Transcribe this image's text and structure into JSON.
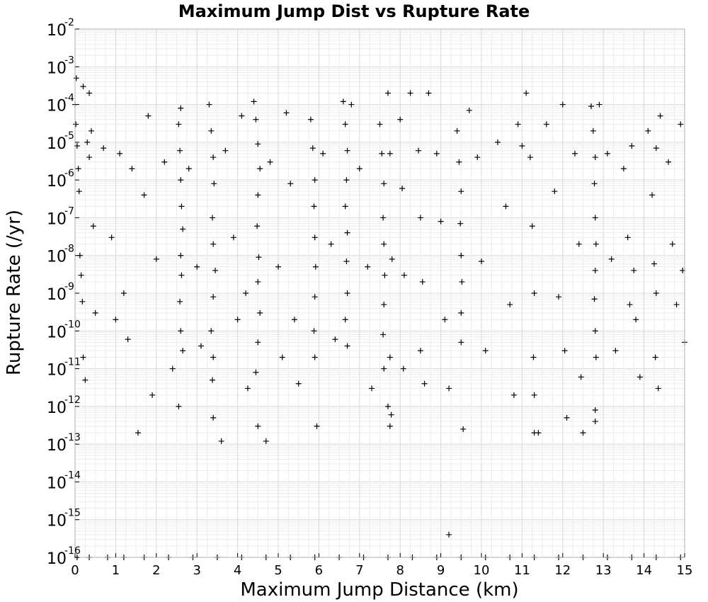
{
  "chart_data": {
    "type": "scatter",
    "title": "Maximum Jump Dist vs Rupture Rate",
    "xlabel": "Maximum Jump Distance (km)",
    "ylabel": "Rupture Rate (/yr)",
    "xlim": [
      0,
      15
    ],
    "ylim": [
      1e-16,
      0.01
    ],
    "yscale": "log",
    "grid": true,
    "marker": "plus",
    "x_ticks": [
      "0",
      "1",
      "2",
      "3",
      "4",
      "5",
      "6",
      "7",
      "8",
      "9",
      "10",
      "11",
      "12",
      "13",
      "14",
      "15"
    ],
    "y_ticks": [
      {
        "base": "10",
        "exp": "-16"
      },
      {
        "base": "10",
        "exp": "-15"
      },
      {
        "base": "10",
        "exp": "-14"
      },
      {
        "base": "10",
        "exp": "-13"
      },
      {
        "base": "10",
        "exp": "-12"
      },
      {
        "base": "10",
        "exp": "-11"
      },
      {
        "base": "10",
        "exp": "-10"
      },
      {
        "base": "10",
        "exp": "-9"
      },
      {
        "base": "10",
        "exp": "-8"
      },
      {
        "base": "10",
        "exp": "-7"
      },
      {
        "base": "10",
        "exp": "-6"
      },
      {
        "base": "10",
        "exp": "-5"
      },
      {
        "base": "10",
        "exp": "-4"
      },
      {
        "base": "10",
        "exp": "-3"
      },
      {
        "base": "10",
        "exp": "-2"
      }
    ],
    "series": [
      {
        "points": [
          [
            0.0,
            0.0001
          ],
          [
            0.02,
            3e-05
          ],
          [
            0.05,
            8e-06
          ],
          [
            0.08,
            2e-06
          ],
          [
            0.1,
            5e-07
          ],
          [
            0.12,
            1e-08
          ],
          [
            0.15,
            3e-09
          ],
          [
            0.18,
            6e-10
          ],
          [
            0.2,
            2e-11
          ],
          [
            0.25,
            5e-12
          ],
          [
            0.3,
            1e-05
          ],
          [
            0.35,
            4e-06
          ],
          [
            0.4,
            2e-05
          ],
          [
            0.45,
            6e-08
          ],
          [
            0.5,
            3e-10
          ],
          [
            0.03,
            0.0005
          ],
          [
            0.2,
            0.0003
          ],
          [
            0.35,
            0.0002
          ],
          [
            0.7,
            7e-06
          ],
          [
            0.9,
            3e-08
          ],
          [
            1.0,
            2e-10
          ],
          [
            1.1,
            5e-06
          ],
          [
            1.2,
            1e-09
          ],
          [
            1.3,
            6e-11
          ],
          [
            1.4,
            2e-06
          ],
          [
            1.55,
            2e-13
          ],
          [
            1.7,
            4e-07
          ],
          [
            1.8,
            5e-05
          ],
          [
            1.9,
            2e-12
          ],
          [
            2.0,
            8e-09
          ],
          [
            2.2,
            3e-06
          ],
          [
            2.4,
            1e-11
          ],
          [
            2.55,
            3e-05
          ],
          [
            2.58,
            6e-06
          ],
          [
            2.6,
            1e-06
          ],
          [
            2.62,
            2e-07
          ],
          [
            2.65,
            5e-08
          ],
          [
            2.6,
            1e-08
          ],
          [
            2.62,
            3e-09
          ],
          [
            2.58,
            6e-10
          ],
          [
            2.6,
            1e-10
          ],
          [
            2.65,
            3e-11
          ],
          [
            2.55,
            1e-12
          ],
          [
            2.6,
            8e-05
          ],
          [
            2.8,
            2e-06
          ],
          [
            3.0,
            5e-09
          ],
          [
            3.1,
            4e-11
          ],
          [
            3.3,
            0.0001
          ],
          [
            3.35,
            2e-05
          ],
          [
            3.4,
            4e-06
          ],
          [
            3.42,
            8e-07
          ],
          [
            3.38,
            1e-07
          ],
          [
            3.4,
            2e-08
          ],
          [
            3.45,
            4e-09
          ],
          [
            3.4,
            8e-10
          ],
          [
            3.35,
            1e-10
          ],
          [
            3.4,
            2e-11
          ],
          [
            3.38,
            5e-12
          ],
          [
            3.4,
            5e-13
          ],
          [
            3.6,
            1.2e-13
          ],
          [
            3.7,
            6e-06
          ],
          [
            3.9,
            3e-08
          ],
          [
            4.0,
            2e-10
          ],
          [
            4.1,
            5e-05
          ],
          [
            4.2,
            1e-09
          ],
          [
            4.25,
            3e-12
          ],
          [
            4.4,
            0.00012
          ],
          [
            4.45,
            4e-05
          ],
          [
            4.5,
            9e-06
          ],
          [
            4.55,
            2e-06
          ],
          [
            4.5,
            4e-07
          ],
          [
            4.48,
            6e-08
          ],
          [
            4.52,
            9e-09
          ],
          [
            4.5,
            2e-09
          ],
          [
            4.55,
            3e-10
          ],
          [
            4.5,
            5e-11
          ],
          [
            4.45,
            8e-12
          ],
          [
            4.5,
            3e-13
          ],
          [
            4.7,
            1.2e-13
          ],
          [
            4.8,
            3e-06
          ],
          [
            5.0,
            5e-09
          ],
          [
            5.1,
            2e-11
          ],
          [
            5.2,
            6e-05
          ],
          [
            5.3,
            8e-07
          ],
          [
            5.4,
            2e-10
          ],
          [
            5.5,
            4e-12
          ],
          [
            5.8,
            4e-05
          ],
          [
            5.85,
            7e-06
          ],
          [
            5.9,
            1e-06
          ],
          [
            5.88,
            2e-07
          ],
          [
            5.9,
            3e-08
          ],
          [
            5.92,
            5e-09
          ],
          [
            5.9,
            8e-10
          ],
          [
            5.88,
            1e-10
          ],
          [
            5.9,
            2e-11
          ],
          [
            5.95,
            3e-13
          ],
          [
            6.1,
            5e-06
          ],
          [
            6.3,
            2e-08
          ],
          [
            6.4,
            6e-11
          ],
          [
            6.6,
            0.00012
          ],
          [
            6.65,
            3e-05
          ],
          [
            6.7,
            6e-06
          ],
          [
            6.68,
            1e-06
          ],
          [
            6.65,
            2e-07
          ],
          [
            6.7,
            4e-08
          ],
          [
            6.68,
            7e-09
          ],
          [
            6.7,
            1e-09
          ],
          [
            6.65,
            2e-10
          ],
          [
            6.7,
            4e-11
          ],
          [
            6.8,
            0.0001
          ],
          [
            7.0,
            2e-06
          ],
          [
            7.2,
            5e-09
          ],
          [
            7.3,
            3e-12
          ],
          [
            7.5,
            3e-05
          ],
          [
            7.55,
            5e-06
          ],
          [
            7.6,
            8e-07
          ],
          [
            7.58,
            1e-07
          ],
          [
            7.6,
            2e-08
          ],
          [
            7.62,
            3e-09
          ],
          [
            7.6,
            5e-10
          ],
          [
            7.58,
            8e-11
          ],
          [
            7.6,
            1e-11
          ],
          [
            7.7,
            1e-12
          ],
          [
            7.7,
            0.0002
          ],
          [
            7.75,
            5e-06
          ],
          [
            7.8,
            8e-09
          ],
          [
            7.75,
            2e-11
          ],
          [
            7.75,
            3e-13
          ],
          [
            7.78,
            6e-13
          ],
          [
            8.0,
            4e-05
          ],
          [
            8.05,
            6e-07
          ],
          [
            8.1,
            3e-09
          ],
          [
            8.08,
            1e-11
          ],
          [
            8.25,
            0.0002
          ],
          [
            8.45,
            6e-06
          ],
          [
            8.5,
            1e-07
          ],
          [
            8.55,
            2e-09
          ],
          [
            8.5,
            3e-11
          ],
          [
            8.7,
            0.0002
          ],
          [
            8.6,
            4e-12
          ],
          [
            8.9,
            5e-06
          ],
          [
            9.0,
            8e-08
          ],
          [
            9.1,
            2e-10
          ],
          [
            9.2,
            3e-12
          ],
          [
            9.2,
            4e-16
          ],
          [
            9.4,
            2e-05
          ],
          [
            9.45,
            3e-06
          ],
          [
            9.5,
            5e-07
          ],
          [
            9.48,
            7e-08
          ],
          [
            9.5,
            1e-08
          ],
          [
            9.52,
            2e-09
          ],
          [
            9.5,
            3e-10
          ],
          [
            9.5,
            5e-11
          ],
          [
            9.55,
            2.5e-13
          ],
          [
            9.7,
            7e-05
          ],
          [
            9.9,
            4e-06
          ],
          [
            10.0,
            7e-09
          ],
          [
            10.1,
            3e-11
          ],
          [
            10.4,
            1e-05
          ],
          [
            10.6,
            2e-07
          ],
          [
            10.7,
            5e-10
          ],
          [
            10.8,
            2e-12
          ],
          [
            10.9,
            3e-05
          ],
          [
            11.0,
            8e-06
          ],
          [
            11.1,
            0.0002
          ],
          [
            11.2,
            4e-06
          ],
          [
            11.25,
            6e-08
          ],
          [
            11.3,
            1e-09
          ],
          [
            11.28,
            2e-11
          ],
          [
            11.3,
            2e-12
          ],
          [
            11.4,
            2e-13
          ],
          [
            11.3,
            2e-13
          ],
          [
            11.6,
            3e-05
          ],
          [
            11.8,
            5e-07
          ],
          [
            11.9,
            8e-10
          ],
          [
            12.0,
            0.0001
          ],
          [
            12.05,
            3e-11
          ],
          [
            12.1,
            5e-13
          ],
          [
            12.3,
            5e-06
          ],
          [
            12.4,
            2e-08
          ],
          [
            12.45,
            6e-12
          ],
          [
            12.5,
            2e-13
          ],
          [
            12.7,
            9e-05
          ],
          [
            12.75,
            2e-05
          ],
          [
            12.8,
            4e-06
          ],
          [
            12.78,
            8e-07
          ],
          [
            12.8,
            1e-07
          ],
          [
            12.82,
            2e-08
          ],
          [
            12.8,
            4e-09
          ],
          [
            12.78,
            7e-10
          ],
          [
            12.8,
            1e-10
          ],
          [
            12.82,
            2e-11
          ],
          [
            12.8,
            8e-13
          ],
          [
            12.8,
            4e-13
          ],
          [
            12.9,
            0.0001
          ],
          [
            13.1,
            5e-06
          ],
          [
            13.2,
            8e-09
          ],
          [
            13.3,
            3e-11
          ],
          [
            13.5,
            2e-06
          ],
          [
            13.6,
            3e-08
          ],
          [
            13.65,
            5e-10
          ],
          [
            13.7,
            8e-06
          ],
          [
            13.75,
            4e-09
          ],
          [
            13.8,
            2e-10
          ],
          [
            13.9,
            6e-12
          ],
          [
            14.1,
            2e-05
          ],
          [
            14.2,
            4e-07
          ],
          [
            14.25,
            6e-09
          ],
          [
            14.3,
            7e-06
          ],
          [
            14.3,
            1e-09
          ],
          [
            14.28,
            2e-11
          ],
          [
            14.35,
            3e-12
          ],
          [
            14.4,
            5e-05
          ],
          [
            14.6,
            3e-06
          ],
          [
            14.7,
            2e-08
          ],
          [
            14.8,
            5e-10
          ],
          [
            14.9,
            3e-05
          ],
          [
            14.95,
            4e-09
          ],
          [
            15.0,
            5e-11
          ]
        ]
      },
      {
        "points_note_free": true,
        "points": [
          [
            0.05,
            1e-16
          ],
          [
            0.35,
            1e-16
          ],
          [
            0.8,
            1e-16
          ],
          [
            1.2,
            1e-16
          ],
          [
            1.7,
            1e-16
          ],
          [
            2.3,
            1e-16
          ],
          [
            2.9,
            1e-16
          ],
          [
            3.5,
            1e-16
          ],
          [
            4.1,
            1e-16
          ],
          [
            4.7,
            1e-16
          ],
          [
            5.3,
            1e-16
          ],
          [
            5.9,
            1e-16
          ],
          [
            6.5,
            1e-16
          ],
          [
            7.1,
            1e-16
          ],
          [
            7.7,
            1e-16
          ],
          [
            8.3,
            1e-16
          ],
          [
            8.9,
            1e-16
          ],
          [
            9.5,
            1e-16
          ],
          [
            10.1,
            1e-16
          ],
          [
            10.7,
            1e-16
          ],
          [
            11.3,
            1e-16
          ],
          [
            11.9,
            1e-16
          ],
          [
            12.5,
            1e-16
          ],
          [
            13.1,
            1e-16
          ],
          [
            13.7,
            1e-16
          ],
          [
            14.3,
            1e-16
          ],
          [
            14.9,
            1e-16
          ]
        ]
      }
    ]
  },
  "colors": {
    "marker": "#000000",
    "grid": "#d8d8d8",
    "frame": "#b0b0b0"
  }
}
